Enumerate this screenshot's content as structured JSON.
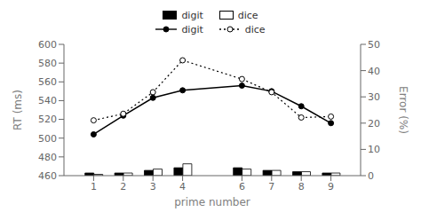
{
  "chart_data": {
    "type": "combo",
    "x": [
      1,
      2,
      3,
      4,
      6,
      7,
      8,
      9
    ],
    "xlim": [
      0,
      10
    ],
    "xticks": [
      1,
      2,
      3,
      4,
      6,
      7,
      8,
      9
    ],
    "xlabel": "prime number",
    "ylabel": "RT (ms)",
    "ylim": [
      460,
      600
    ],
    "yticks": [
      460,
      480,
      500,
      520,
      540,
      560,
      580,
      600
    ],
    "y2label": "Error (%)",
    "y2lim": [
      0,
      50
    ],
    "y2ticks": [
      0,
      10,
      20,
      30,
      40,
      50
    ],
    "grid": false,
    "legend": "top",
    "series": [
      {
        "name": "digit",
        "type": "bar",
        "axis": "y2",
        "color": "#000000",
        "values": [
          1.0,
          1.0,
          2.0,
          3.0,
          3.0,
          2.0,
          1.5,
          1.0
        ]
      },
      {
        "name": "dice",
        "type": "bar",
        "axis": "y2",
        "color": "#ffffff",
        "values": [
          0.5,
          1.0,
          2.5,
          4.5,
          2.5,
          2.0,
          1.5,
          1.0
        ]
      },
      {
        "name": "digit",
        "type": "line",
        "color": "#000000",
        "marker": "circle",
        "line_style": "solid",
        "values": [
          504,
          524,
          543,
          551,
          556,
          550,
          534,
          516
        ]
      },
      {
        "name": "dice",
        "type": "line",
        "color": "#000000",
        "marker": "hollow",
        "line_style": "dotted",
        "values": [
          519,
          526,
          549,
          583,
          563,
          549,
          522,
          523
        ]
      }
    ]
  }
}
